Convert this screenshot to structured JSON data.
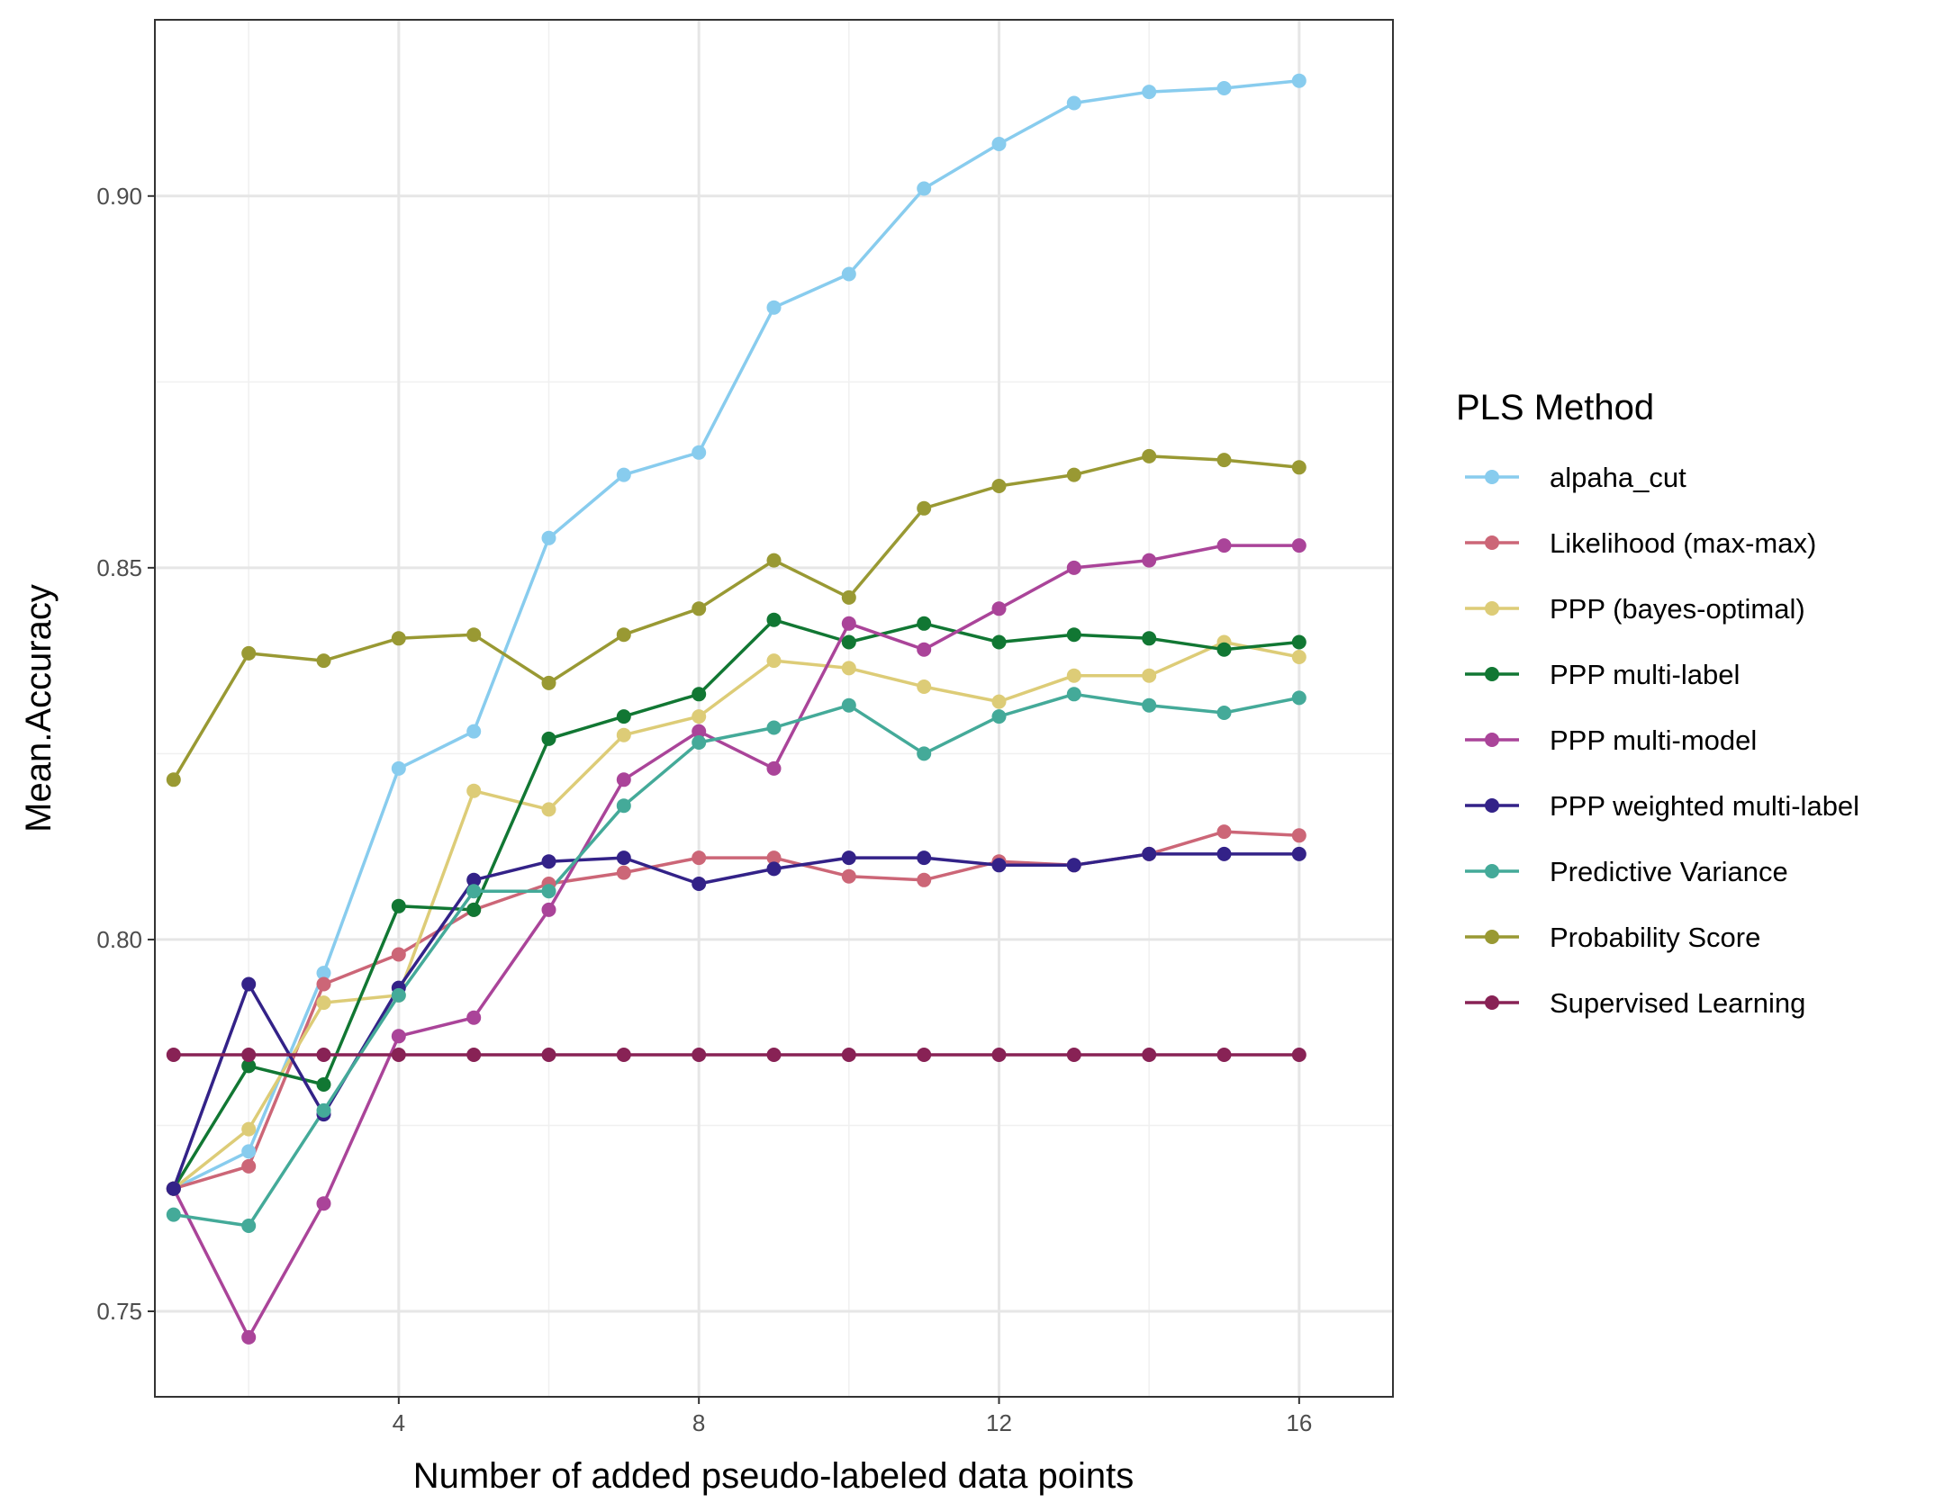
{
  "chart_data": {
    "type": "line",
    "xlabel": "Number of added pseudo-labeled data points",
    "ylabel": "Mean.Accuracy",
    "xlim": [
      0.75,
      17.25
    ],
    "ylim": [
      0.7385,
      0.9237
    ],
    "x_ticks": [
      4,
      8,
      12,
      16
    ],
    "x_tick_labels": [
      "4",
      "8",
      "12",
      "16"
    ],
    "y_ticks": [
      0.75,
      0.8,
      0.85,
      0.9
    ],
    "y_tick_labels": [
      "0.75",
      "0.80",
      "0.85",
      "0.90"
    ],
    "grid": true,
    "legend_title": "PLS Method",
    "legend_position": "right",
    "x": [
      1,
      2,
      3,
      4,
      5,
      6,
      7,
      8,
      9,
      10,
      11,
      12,
      13,
      14,
      15,
      16
    ],
    "series": [
      {
        "name": "alpaha_cut",
        "color": "#88CCEE",
        "values": [
          0.7665,
          0.7715,
          0.7955,
          0.823,
          0.828,
          0.854,
          0.8625,
          0.8655,
          0.885,
          0.8895,
          0.901,
          0.907,
          0.9125,
          0.914,
          0.9145,
          0.9155
        ]
      },
      {
        "name": "Likelihood (max-max)",
        "color": "#CC6677",
        "values": [
          0.7665,
          0.7695,
          0.794,
          0.798,
          0.804,
          0.8075,
          0.809,
          0.811,
          0.811,
          0.8085,
          0.808,
          0.8105,
          0.81,
          0.8115,
          0.8145,
          0.814
        ]
      },
      {
        "name": "PPP (bayes-optimal)",
        "color": "#DDCC77",
        "values": [
          0.7665,
          0.7745,
          0.7915,
          0.7925,
          0.82,
          0.8175,
          0.8275,
          0.83,
          0.8375,
          0.8365,
          0.834,
          0.832,
          0.8355,
          0.8355,
          0.84,
          0.838
        ]
      },
      {
        "name": "PPP multi-label",
        "color": "#117733",
        "values": [
          0.7665,
          0.783,
          0.7805,
          0.8045,
          0.804,
          0.827,
          0.83,
          0.833,
          0.843,
          0.84,
          0.8425,
          0.84,
          0.841,
          0.8405,
          0.839,
          0.84
        ]
      },
      {
        "name": "PPP multi-model",
        "color": "#AA4499",
        "values": [
          0.7665,
          0.7465,
          0.7645,
          0.787,
          0.7895,
          0.804,
          0.8215,
          0.828,
          0.823,
          0.8425,
          0.839,
          0.8445,
          0.85,
          0.851,
          0.853,
          0.853
        ]
      },
      {
        "name": "PPP weighted multi-label",
        "color": "#332288",
        "values": [
          0.7665,
          0.794,
          0.7765,
          0.7935,
          0.808,
          0.8105,
          0.811,
          0.8075,
          0.8095,
          0.811,
          0.811,
          0.81,
          0.81,
          0.8115,
          0.8115,
          0.8115
        ]
      },
      {
        "name": "Predictive Variance",
        "color": "#44AA99",
        "values": [
          0.763,
          0.7615,
          0.777,
          0.7925,
          0.8065,
          0.8065,
          0.818,
          0.8265,
          0.8285,
          0.8315,
          0.825,
          0.83,
          0.833,
          0.8315,
          0.8305,
          0.8325
        ]
      },
      {
        "name": "Probability Score",
        "color": "#999933",
        "values": [
          0.8215,
          0.8385,
          0.8375,
          0.8405,
          0.841,
          0.8345,
          0.841,
          0.8445,
          0.851,
          0.846,
          0.858,
          0.861,
          0.8625,
          0.865,
          0.8645,
          0.8635
        ]
      },
      {
        "name": "Supervised Learning",
        "color": "#882255",
        "values": [
          0.7845,
          0.7845,
          0.7845,
          0.7845,
          0.7845,
          0.7845,
          0.7845,
          0.7845,
          0.7845,
          0.7845,
          0.7845,
          0.7845,
          0.7845,
          0.7845,
          0.7845,
          0.7845
        ]
      }
    ]
  }
}
